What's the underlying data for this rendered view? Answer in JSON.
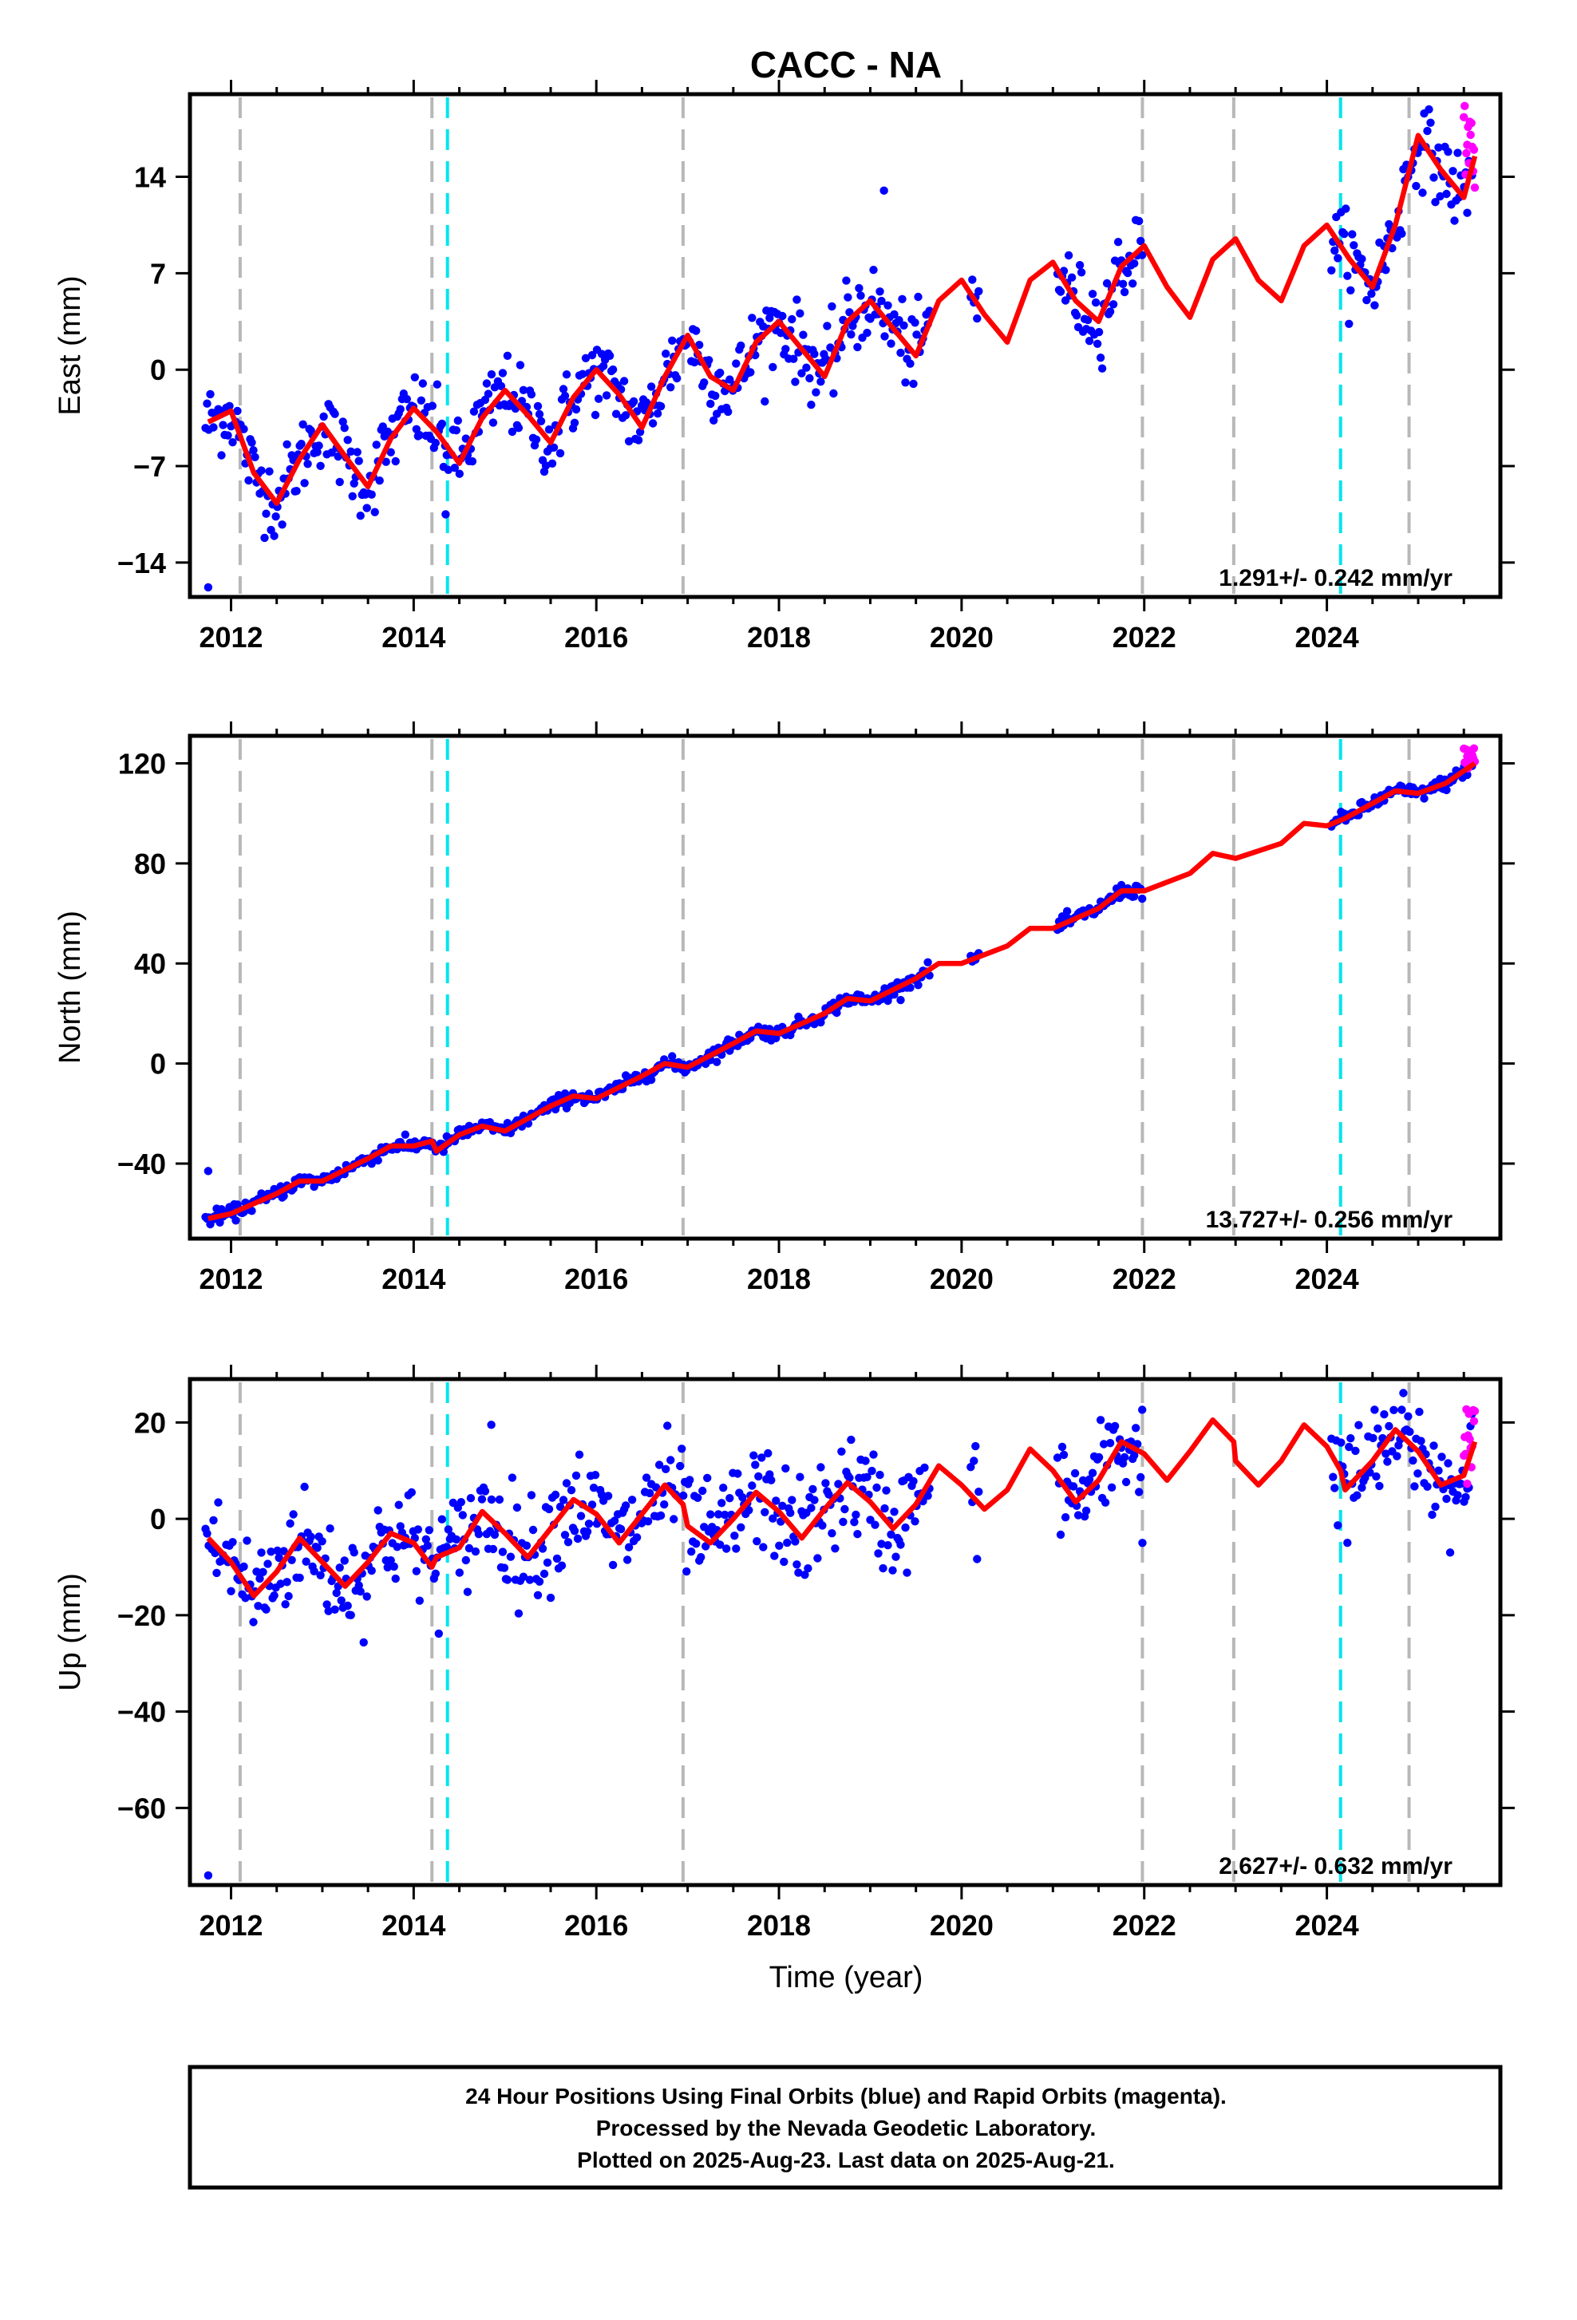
{
  "title": "CACC - NA",
  "colors": {
    "final": "#0000ff",
    "rapid": "#ff00ff",
    "model": "#ff0000",
    "dash_gray": "#b8b8b8",
    "dash_cyan": "#00e5ee",
    "frame": "#000000"
  },
  "x_axis": {
    "label": "Time (year)",
    "range": [
      2011.55,
      2025.9
    ],
    "ticks": [
      2012,
      2014,
      2016,
      2018,
      2020,
      2022,
      2024
    ],
    "tick_labels": [
      "2012",
      "2014",
      "2016",
      "2018",
      "2020",
      "2022",
      "2024"
    ]
  },
  "vertical_lines": {
    "gray": [
      2012.1,
      2014.2,
      2016.95,
      2021.98,
      2022.98,
      2024.9
    ],
    "cyan": [
      2014.37,
      2024.15
    ]
  },
  "footer": {
    "line1": "24 Hour Positions Using Final Orbits (blue) and Rapid Orbits (magenta).",
    "line2": "Processed by the Nevada Geodetic Laboratory.",
    "line3": "Plotted on 2025-Aug-23. Last data on 2025-Aug-21."
  },
  "chart_data": [
    {
      "type": "scatter",
      "name": "East",
      "ylabel": "East (mm)",
      "ylim": [
        -16.5,
        20
      ],
      "yticks": [
        -14,
        -7,
        0,
        7,
        14
      ],
      "ytick_labels": [
        "−14",
        "−7",
        "0",
        "7",
        "14"
      ],
      "rate_label": "1.291+/- 0.242 mm/yr",
      "model": {
        "x": [
          2011.75,
          2012.0,
          2012.25,
          2012.5,
          2012.75,
          2013.0,
          2013.25,
          2013.5,
          2013.75,
          2014.0,
          2014.25,
          2014.5,
          2014.75,
          2015.0,
          2015.25,
          2015.5,
          2015.75,
          2016.0,
          2016.25,
          2016.5,
          2016.75,
          2017.0,
          2017.25,
          2017.5,
          2017.75,
          2018.0,
          2018.25,
          2018.5,
          2018.75,
          2019.0,
          2019.25,
          2019.5,
          2019.75,
          2020.0,
          2020.25,
          2020.5,
          2020.75,
          2021.0,
          2021.25,
          2021.5,
          2021.75,
          2022.0,
          2022.25,
          2022.5,
          2022.75,
          2023.0,
          2023.25,
          2023.5,
          2023.75,
          2024.0,
          2024.25,
          2024.5,
          2024.75,
          2025.0,
          2025.25,
          2025.5,
          2025.62
        ],
        "y": [
          -3.8,
          -3.0,
          -7.5,
          -9.7,
          -6.5,
          -4.0,
          -6.3,
          -8.5,
          -5.0,
          -2.8,
          -4.5,
          -6.8,
          -3.5,
          -1.5,
          -3.3,
          -5.3,
          -2.0,
          0.0,
          -1.8,
          -4.2,
          -0.5,
          2.5,
          -0.5,
          -1.5,
          2.0,
          3.5,
          1.5,
          -0.5,
          3.5,
          5.0,
          3.0,
          1.0,
          5.0,
          6.5,
          4.0,
          2.0,
          6.5,
          7.8,
          5.0,
          3.5,
          7.5,
          9.0,
          6.0,
          3.8,
          8.0,
          9.5,
          6.5,
          5.0,
          9.0,
          10.5,
          8.0,
          6.0,
          10.5,
          17.0,
          14.5,
          12.5,
          15.5
        ]
      },
      "segments": [
        [
          2011.72,
          2019.65
        ],
        [
          2020.1,
          2020.2
        ],
        [
          2021.05,
          2021.98
        ],
        [
          2024.05,
          2025.6
        ]
      ],
      "scatter_amp": 1.4,
      "outliers": [
        {
          "x": 2011.75,
          "y": -15.8
        },
        {
          "x": 2014.35,
          "y": -10.5
        },
        {
          "x": 2019.15,
          "y": 13.0
        }
      ],
      "rapid": {
        "x0": 2025.5,
        "x1": 2025.62,
        "ymin": 13.0,
        "ymax": 19.5
      }
    },
    {
      "type": "scatter",
      "name": "North",
      "ylabel": "North (mm)",
      "ylim": [
        -70,
        131
      ],
      "yticks": [
        -40,
        0,
        40,
        80,
        120
      ],
      "ytick_labels": [
        "−40",
        "0",
        "40",
        "80",
        "120"
      ],
      "rate_label": "13.727+/- 0.256 mm/yr",
      "model": {
        "x": [
          2011.75,
          2012.0,
          2012.5,
          2012.75,
          2013.0,
          2013.5,
          2013.75,
          2014.0,
          2014.2,
          2014.25,
          2014.5,
          2014.75,
          2015.0,
          2015.5,
          2015.75,
          2016.0,
          2016.5,
          2016.75,
          2017.0,
          2017.5,
          2017.75,
          2018.0,
          2018.5,
          2018.75,
          2019.0,
          2019.5,
          2019.75,
          2020.0,
          2020.5,
          2020.75,
          2021.0,
          2021.5,
          2021.75,
          2022.0,
          2022.5,
          2022.75,
          2023.0,
          2023.5,
          2023.75,
          2024.0,
          2024.2,
          2024.5,
          2024.75,
          2025.0,
          2025.3,
          2025.62
        ],
        "y": [
          -62.0,
          -60.0,
          -52.0,
          -47.0,
          -47.0,
          -38.0,
          -33.0,
          -33.0,
          -31.0,
          -35.0,
          -28.5,
          -25.0,
          -27.0,
          -17.0,
          -13.0,
          -14.0,
          -5.0,
          0.0,
          -1.5,
          8.0,
          13.0,
          12.0,
          20.0,
          26.0,
          25.0,
          34.0,
          40.0,
          40.0,
          47.0,
          54.0,
          54.0,
          62.0,
          69.0,
          69.0,
          76.0,
          84.0,
          82.0,
          88.0,
          96.0,
          95.0,
          98.0,
          104.0,
          109.0,
          108.0,
          112.0,
          120.0
        ]
      },
      "segments": [
        [
          2011.72,
          2019.65
        ],
        [
          2020.1,
          2020.2
        ],
        [
          2021.05,
          2021.98
        ],
        [
          2024.05,
          2025.6
        ]
      ],
      "scatter_amp": 1.4,
      "outliers": [
        {
          "x": 2011.75,
          "y": -43.0
        }
      ],
      "rapid": {
        "x0": 2025.5,
        "x1": 2025.62,
        "ymin": 118.0,
        "ymax": 126.0
      }
    },
    {
      "type": "scatter",
      "name": "Up",
      "ylabel": "Up (mm)",
      "ylim": [
        -76,
        29
      ],
      "yticks": [
        -60,
        -40,
        -20,
        0,
        20
      ],
      "ytick_labels": [
        "−60",
        "−40",
        "−20",
        "0",
        "20"
      ],
      "rate_label": "2.627+/- 0.632 mm/yr",
      "model": {
        "x": [
          2011.75,
          2012.0,
          2012.25,
          2012.5,
          2012.75,
          2013.0,
          2013.25,
          2013.5,
          2013.75,
          2014.0,
          2014.2,
          2014.25,
          2014.5,
          2014.75,
          2015.0,
          2015.25,
          2015.5,
          2015.75,
          2016.0,
          2016.25,
          2016.5,
          2016.75,
          2016.95,
          2017.0,
          2017.25,
          2017.5,
          2017.75,
          2018.0,
          2018.25,
          2018.5,
          2018.75,
          2019.0,
          2019.25,
          2019.5,
          2019.75,
          2020.0,
          2020.25,
          2020.5,
          2020.75,
          2021.0,
          2021.25,
          2021.5,
          2021.75,
          2022.0,
          2022.25,
          2022.5,
          2022.75,
          2022.98,
          2023.0,
          2023.25,
          2023.5,
          2023.75,
          2024.0,
          2024.15,
          2024.2,
          2024.5,
          2024.75,
          2025.0,
          2025.25,
          2025.5,
          2025.62
        ],
        "y": [
          -4.0,
          -9.0,
          -16.0,
          -11.0,
          -4.0,
          -9.0,
          -14.0,
          -9.0,
          -3.0,
          -5.0,
          -10.0,
          -8.0,
          -6.0,
          1.5,
          -3.0,
          -8.0,
          -2.0,
          4.0,
          1.0,
          -5.0,
          1.0,
          7.0,
          3.0,
          -1.5,
          -5.0,
          0.0,
          5.5,
          1.5,
          -4.0,
          2.0,
          7.5,
          3.5,
          -2.0,
          3.0,
          11.0,
          7.0,
          2.0,
          6.0,
          14.5,
          10.0,
          3.5,
          8.0,
          16.0,
          13.5,
          8.0,
          14.0,
          20.5,
          16.0,
          12.0,
          7.0,
          12.0,
          19.5,
          15.0,
          10.0,
          6.0,
          12.0,
          18.5,
          14.0,
          7.0,
          9.0,
          16.0
        ]
      },
      "segments": [
        [
          2011.72,
          2019.65
        ],
        [
          2020.1,
          2020.2
        ],
        [
          2021.05,
          2021.98
        ],
        [
          2024.05,
          2025.6
        ]
      ],
      "scatter_amp": 5.5,
      "outliers": [
        {
          "x": 2011.75,
          "y": -74.0
        },
        {
          "x": 2014.85,
          "y": 19.5
        },
        {
          "x": 2021.98,
          "y": -5.0
        },
        {
          "x": 2025.35,
          "y": -7.0
        }
      ],
      "rapid": {
        "x0": 2025.5,
        "x1": 2025.62,
        "ymin": 6.5,
        "ymax": 23.0
      }
    }
  ]
}
